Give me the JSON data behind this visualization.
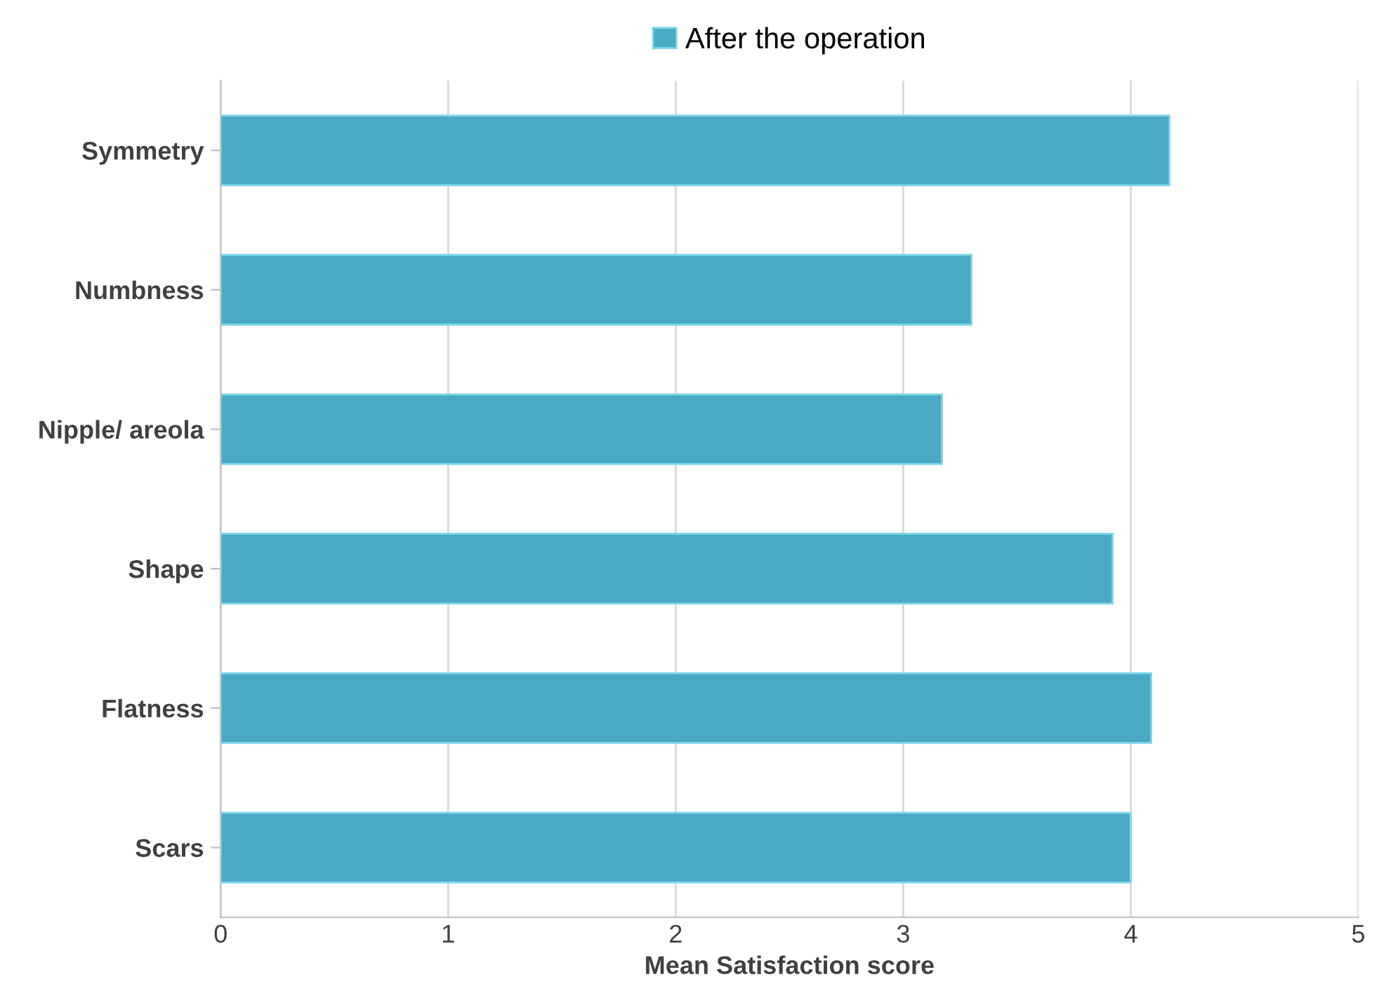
{
  "chart_data": {
    "type": "bar",
    "orientation": "horizontal",
    "xlabel": "Mean Satisfaction score",
    "categories": [
      "Symmetry",
      "Numbness",
      "Nipple/ areola",
      "Shape",
      "Flatness",
      "Scars"
    ],
    "series": [
      {
        "name": "After the operation",
        "color": "#4aaac4",
        "values": [
          4.17,
          3.3,
          3.17,
          3.92,
          4.09,
          4.0
        ]
      }
    ],
    "xlim": [
      0,
      5
    ],
    "xticks": [
      0,
      1,
      2,
      3,
      4,
      5
    ],
    "grid": "x",
    "legend": "top"
  }
}
